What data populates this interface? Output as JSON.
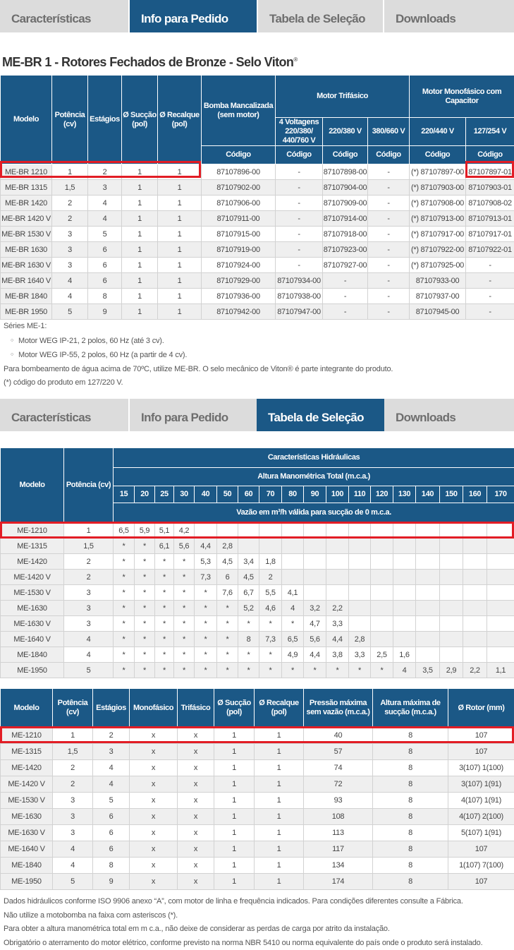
{
  "tabs": [
    "Características",
    "Info para Pedido",
    "Tabela de Seleção",
    "Downloads"
  ],
  "tabs_top_active": 1,
  "tabs_bottom_active": 2,
  "colors": {
    "header": "#1b5886",
    "highlight": "#e21d25",
    "tab_inactive": "#dcdcdc"
  },
  "title": "ME-BR 1 - Rotores Fechados de Bronze - Selo Viton",
  "title_mark": "®",
  "order_table": {
    "headers": {
      "modelo": "Modelo",
      "potencia": "Potência (cv)",
      "estagios": "Estágios",
      "succao": "Ø Sucção (pol)",
      "recalque": "Ø Recalque (pol)",
      "bomba": "Bomba Mancalizada (sem motor)",
      "trifasico": "Motor Trifásico",
      "monofasico": "Motor Monofásico com Capacitor",
      "v4": "4 Voltagens 220/380/ 440/760 V",
      "v220_380": "220/380 V",
      "v380_660": "380/660 V",
      "v220_440": "220/440 V",
      "v127_254": "127/254 V",
      "codigo": "Código"
    },
    "rows": [
      [
        "ME-BR 1210",
        "1",
        "2",
        "1",
        "1",
        "87107896-00",
        "-",
        "87107898-00",
        "-",
        "(*) 87107897-00",
        "87107897-01"
      ],
      [
        "ME-BR 1315",
        "1,5",
        "3",
        "1",
        "1",
        "87107902-00",
        "-",
        "87107904-00",
        "-",
        "(*) 87107903-00",
        "87107903-01"
      ],
      [
        "ME-BR 1420",
        "2",
        "4",
        "1",
        "1",
        "87107906-00",
        "-",
        "87107909-00",
        "-",
        "(*) 87107908-00",
        "87107908-02"
      ],
      [
        "ME-BR 1420 V",
        "2",
        "4",
        "1",
        "1",
        "87107911-00",
        "-",
        "87107914-00",
        "-",
        "(*) 87107913-00",
        "87107913-01"
      ],
      [
        "ME-BR 1530 V",
        "3",
        "5",
        "1",
        "1",
        "87107915-00",
        "-",
        "87107918-00",
        "-",
        "(*) 87107917-00",
        "87107917-01"
      ],
      [
        "ME-BR 1630",
        "3",
        "6",
        "1",
        "1",
        "87107919-00",
        "-",
        "87107923-00",
        "-",
        "(*) 87107922-00",
        "87107922-01"
      ],
      [
        "ME-BR 1630 V",
        "3",
        "6",
        "1",
        "1",
        "87107924-00",
        "-",
        "87107927-00",
        "-",
        "(*) 87107925-00",
        "-"
      ],
      [
        "ME-BR 1640 V",
        "4",
        "6",
        "1",
        "1",
        "87107929-00",
        "87107934-00",
        "-",
        "-",
        "87107933-00",
        "-"
      ],
      [
        "ME-BR 1840",
        "4",
        "8",
        "1",
        "1",
        "87107936-00",
        "87107938-00",
        "-",
        "-",
        "87107937-00",
        "-"
      ],
      [
        "ME-BR 1950",
        "5",
        "9",
        "1",
        "1",
        "87107942-00",
        "87107947-00",
        "-",
        "-",
        "87107945-00",
        "-"
      ]
    ]
  },
  "notes1": {
    "series": "Séries ME-1:",
    "bullets": [
      "Motor WEG IP-21, 2 polos, 60 Hz (até 3 cv).",
      "Motor WEG IP-55, 2 polos, 60 Hz (a partir de 4 cv)."
    ],
    "line1": "Para bombeamento de água acima de 70ºC, utilize ME-BR. O selo mecânico de Viton® é parte integrante do produto.",
    "line2": "(*) código do produto em 127/220 V."
  },
  "selection_table": {
    "headers": {
      "modelo": "Modelo",
      "potencia": "Potência (cv)",
      "group": "Características Hidráulicas",
      "altura": "Altura Manométrica Total (m.c.a.)",
      "vazao": "Vazão em m³/h válida para sucção de 0 m.c.a."
    },
    "heights": [
      "15",
      "20",
      "25",
      "30",
      "40",
      "50",
      "60",
      "70",
      "80",
      "90",
      "100",
      "110",
      "120",
      "130",
      "140",
      "150",
      "160",
      "170"
    ],
    "rows": [
      {
        "model": "ME-1210",
        "cv": "1",
        "v": [
          "6,5",
          "5,9",
          "5,1",
          "4,2",
          "",
          "",
          "",
          "",
          "",
          "",
          "",
          "",
          "",
          "",
          "",
          "",
          "",
          ""
        ]
      },
      {
        "model": "ME-1315",
        "cv": "1,5",
        "v": [
          "*",
          "*",
          "6,1",
          "5,6",
          "4,4",
          "2,8",
          "",
          "",
          "",
          "",
          "",
          "",
          "",
          "",
          "",
          "",
          "",
          ""
        ]
      },
      {
        "model": "ME-1420",
        "cv": "2",
        "v": [
          "*",
          "*",
          "*",
          "*",
          "5,3",
          "4,5",
          "3,4",
          "1,8",
          "",
          "",
          "",
          "",
          "",
          "",
          "",
          "",
          "",
          ""
        ]
      },
      {
        "model": "ME-1420 V",
        "cv": "2",
        "v": [
          "*",
          "*",
          "*",
          "*",
          "7,3",
          "6",
          "4,5",
          "2",
          "",
          "",
          "",
          "",
          "",
          "",
          "",
          "",
          "",
          ""
        ]
      },
      {
        "model": "ME-1530 V",
        "cv": "3",
        "v": [
          "*",
          "*",
          "*",
          "*",
          "*",
          "7,6",
          "6,7",
          "5,5",
          "4,1",
          "",
          "",
          "",
          "",
          "",
          "",
          "",
          "",
          ""
        ]
      },
      {
        "model": "ME-1630",
        "cv": "3",
        "v": [
          "*",
          "*",
          "*",
          "*",
          "*",
          "*",
          "5,2",
          "4,6",
          "4",
          "3,2",
          "2,2",
          "",
          "",
          "",
          "",
          "",
          "",
          ""
        ]
      },
      {
        "model": "ME-1630 V",
        "cv": "3",
        "v": [
          "*",
          "*",
          "*",
          "*",
          "*",
          "*",
          "*",
          "*",
          "*",
          "4,7",
          "3,3",
          "",
          "",
          "",
          "",
          "",
          "",
          ""
        ]
      },
      {
        "model": "ME-1640 V",
        "cv": "4",
        "v": [
          "*",
          "*",
          "*",
          "*",
          "*",
          "*",
          "8",
          "7,3",
          "6,5",
          "5,6",
          "4,4",
          "2,8",
          "",
          "",
          "",
          "",
          "",
          ""
        ]
      },
      {
        "model": "ME-1840",
        "cv": "4",
        "v": [
          "*",
          "*",
          "*",
          "*",
          "*",
          "*",
          "*",
          "*",
          "4,9",
          "4,4",
          "3,8",
          "3,3",
          "2,5",
          "1,6",
          "",
          "",
          "",
          ""
        ]
      },
      {
        "model": "ME-1950",
        "cv": "5",
        "v": [
          "*",
          "*",
          "*",
          "*",
          "*",
          "*",
          "*",
          "*",
          "*",
          "*",
          "*",
          "*",
          "*",
          "4",
          "3,5",
          "2,9",
          "2,2",
          "1,1"
        ]
      }
    ]
  },
  "spec_table": {
    "headers": [
      "Modelo",
      "Potência (cv)",
      "Estágios",
      "Monofásico",
      "Trifásico",
      "Ø Sucção (pol)",
      "Ø Recalque (pol)",
      "Pressão máxima sem vazão (m.c.a.)",
      "Altura máxima de sucção (m.c.a.)",
      "Ø Rotor (mm)"
    ],
    "rows": [
      [
        "ME-1210",
        "1",
        "2",
        "x",
        "x",
        "1",
        "1",
        "40",
        "8",
        "107"
      ],
      [
        "ME-1315",
        "1,5",
        "3",
        "x",
        "x",
        "1",
        "1",
        "57",
        "8",
        "107"
      ],
      [
        "ME-1420",
        "2",
        "4",
        "x",
        "x",
        "1",
        "1",
        "74",
        "8",
        "3(107) 1(100)"
      ],
      [
        "ME-1420 V",
        "2",
        "4",
        "x",
        "x",
        "1",
        "1",
        "72",
        "8",
        "3(107) 1(91)"
      ],
      [
        "ME-1530 V",
        "3",
        "5",
        "x",
        "x",
        "1",
        "1",
        "93",
        "8",
        "4(107) 1(91)"
      ],
      [
        "ME-1630",
        "3",
        "6",
        "x",
        "x",
        "1",
        "1",
        "108",
        "8",
        "4(107) 2(100)"
      ],
      [
        "ME-1630 V",
        "3",
        "6",
        "x",
        "x",
        "1",
        "1",
        "113",
        "8",
        "5(107) 1(91)"
      ],
      [
        "ME-1640 V",
        "4",
        "6",
        "x",
        "x",
        "1",
        "1",
        "117",
        "8",
        "107"
      ],
      [
        "ME-1840",
        "4",
        "8",
        "x",
        "x",
        "1",
        "1",
        "134",
        "8",
        "1(107) 7(100)"
      ],
      [
        "ME-1950",
        "5",
        "9",
        "x",
        "x",
        "1",
        "1",
        "174",
        "8",
        "107"
      ]
    ]
  },
  "notes2": [
    "Dados hidráulicos conforme ISO 9906 anexo “A”, com motor de linha e frequência indicados. Para condições diferentes consulte a Fábrica.",
    "Não utilize a motobomba na faixa com asteriscos (*).",
    "Para obter a altura manométrica total em m c.a., não deixe de considerar as perdas de carga por atrito da instalação.",
    "Obrigatório o aterramento do motor elétrico, conforme previsto na norma NBR 5410 ou norma equivalente do país onde o produto será instalado."
  ]
}
